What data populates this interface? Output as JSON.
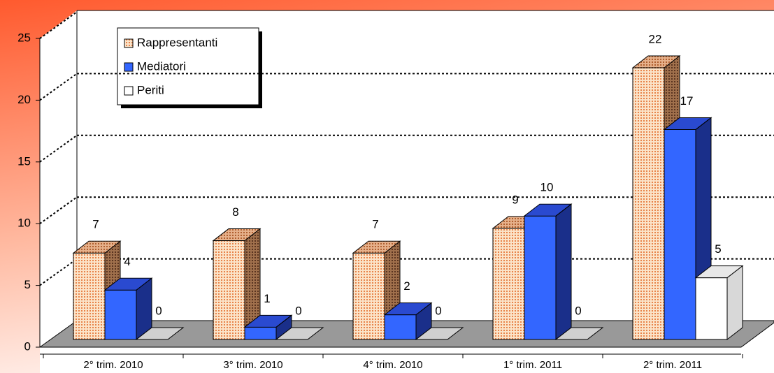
{
  "chart_data": {
    "type": "bar3d",
    "categories": [
      "2° trim. 2010",
      "3° trim. 2010",
      "4° trim. 2010",
      "1° trim. 2011",
      "2° trim. 2011"
    ],
    "series": [
      {
        "name": "Rappresentanti",
        "color": "#f5c79c",
        "values": [
          7,
          8,
          7,
          9,
          22
        ]
      },
      {
        "name": "Mediatori",
        "color": "#3366ff",
        "values": [
          4,
          1,
          2,
          10,
          17
        ]
      },
      {
        "name": "Periti",
        "color": "#ffffff",
        "values": [
          0,
          0,
          0,
          0,
          5
        ]
      }
    ],
    "ylim": [
      0,
      25
    ],
    "yticks": [
      0,
      5,
      10,
      15,
      20,
      25
    ],
    "grid": true,
    "legend": "top-left"
  }
}
